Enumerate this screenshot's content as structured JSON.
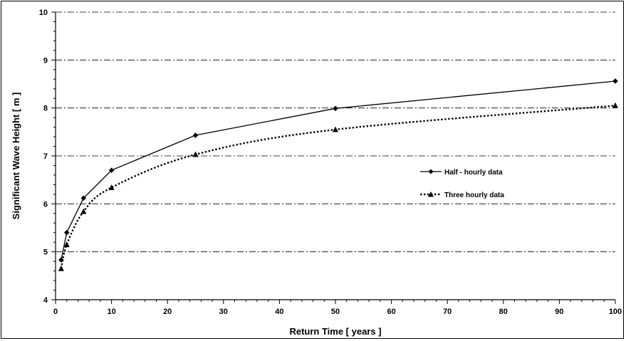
{
  "chart_data": {
    "type": "line",
    "title": "",
    "xlabel": "Return Time [ years ]",
    "ylabel": "Significant Wave Height [ m ]",
    "xlim": [
      0,
      100
    ],
    "ylim": [
      4,
      10
    ],
    "x_ticks": [
      "0",
      "10",
      "20",
      "30",
      "40",
      "50",
      "60",
      "70",
      "80",
      "90",
      "100"
    ],
    "y_ticks": [
      "4",
      "5",
      "6",
      "7",
      "8",
      "9",
      "10"
    ],
    "grid": "horizontal dash-dot",
    "legend_position": "right-center",
    "series": [
      {
        "name": "Half - hourly data",
        "marker": "diamond",
        "line": "solid",
        "color": "#000000",
        "x": [
          1,
          2,
          5,
          10,
          25,
          50,
          100
        ],
        "y": [
          4.83,
          5.4,
          6.12,
          6.7,
          7.43,
          7.99,
          8.56
        ]
      },
      {
        "name": "Three hourly data",
        "marker": "triangle",
        "line": "dotted",
        "color": "#000000",
        "x": [
          1,
          2,
          5,
          10,
          25,
          50,
          100
        ],
        "y": [
          4.65,
          5.15,
          5.84,
          6.34,
          7.03,
          7.55,
          8.05
        ]
      }
    ]
  }
}
